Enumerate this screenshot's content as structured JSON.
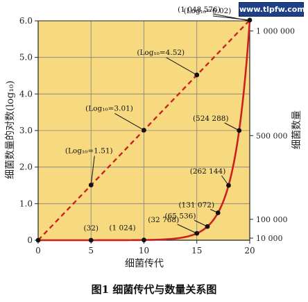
{
  "watermark": "www.tlpfw.com",
  "caption": "图1  细菌传代与数量关系图",
  "chart_data": {
    "type": "line",
    "xlabel": "细菌传代",
    "ylabel_left": "细菌数量的对数(log₁₀)",
    "ylabel_right": "细菌数量",
    "xlim": [
      0,
      20
    ],
    "ylim_left": [
      0,
      6
    ],
    "ylim_right": [
      0,
      1048576
    ],
    "x_ticks": [
      "0",
      "5",
      "10",
      "15",
      "20"
    ],
    "y_left_ticks": [
      "0",
      "1.0",
      "2.0",
      "3.0",
      "4.0",
      "5.0",
      "6.0"
    ],
    "y_right_ticks": [
      {
        "value": 10000,
        "label": "10 000"
      },
      {
        "value": 100000,
        "label": "100 000"
      },
      {
        "value": 500000,
        "label": "500 000"
      },
      {
        "value": 1000000,
        "label": "1 000 000"
      }
    ],
    "background_color": "#f7d980",
    "grid": true,
    "grid_color": "#7f7f7f",
    "series": [
      {
        "style": "dashed",
        "axis": "left",
        "color": "#cc1f1f",
        "x": [
          0,
          20
        ],
        "y": [
          0,
          6.02
        ]
      },
      {
        "style": "solid",
        "axis": "right",
        "color": "#cc1f1f",
        "x": [
          0,
          5,
          10,
          15,
          16,
          17,
          18,
          19,
          20
        ],
        "y": [
          1,
          32,
          1024,
          32768,
          65536,
          131072,
          262144,
          524288,
          1048576
        ]
      }
    ],
    "markers": [
      {
        "x": 0,
        "y_left": 0
      },
      {
        "x": 5,
        "y_left": 1.51
      },
      {
        "x": 10,
        "y_left": 3.01
      },
      {
        "x": 15,
        "y_left": 4.52
      },
      {
        "x": 20,
        "y_left": 6.02
      },
      {
        "x": 5,
        "y_right": 32
      },
      {
        "x": 10,
        "y_right": 1024
      },
      {
        "x": 15,
        "y_right": 32768
      },
      {
        "x": 16,
        "y_right": 65536
      },
      {
        "x": 17,
        "y_right": 131072
      },
      {
        "x": 18,
        "y_right": 262144
      },
      {
        "x": 19,
        "y_right": 524288
      }
    ],
    "annotations_log": [
      {
        "x": 5,
        "y": 1.51,
        "label": "(Log₁₀=1.51)"
      },
      {
        "x": 10,
        "y": 3.01,
        "label": "(Log₁₀=3.01)"
      },
      {
        "x": 15,
        "y": 4.52,
        "label": "(Log₁₀=4.52)"
      },
      {
        "x": 20,
        "y": 6.02,
        "label": "(Log₁₀=6.02)"
      }
    ],
    "annotations_count": [
      {
        "x": 5,
        "y": 32,
        "label": "(32)"
      },
      {
        "x": 10,
        "y": 1024,
        "label": "(1 024)"
      },
      {
        "x": 15,
        "y": 32768,
        "label": "(32 768)"
      },
      {
        "x": 16,
        "y": 65536,
        "label": "(65 536)"
      },
      {
        "x": 17,
        "y": 131072,
        "label": "(131 072)"
      },
      {
        "x": 18,
        "y": 262144,
        "label": "(262 144)"
      },
      {
        "x": 19,
        "y": 524288,
        "label": "(524 288)"
      },
      {
        "x": 20,
        "y": 1048576,
        "label": "(1 048 576)"
      }
    ]
  }
}
